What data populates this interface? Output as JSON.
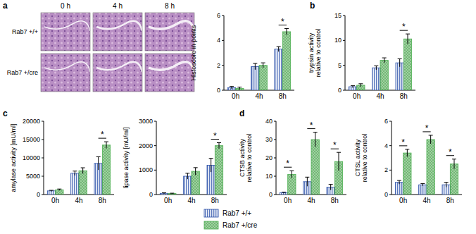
{
  "figure": {
    "panel_label": "a",
    "columns": [
      "0 h",
      "4 h",
      "8 h"
    ],
    "rows": [
      "Rab7 +/+",
      "Rab7 +/cre"
    ]
  },
  "chart_data": [
    {
      "type": "bar",
      "y_label": [
        "Histoscore in points"
      ],
      "categories": [
        "0h",
        "4h",
        "8h"
      ],
      "ylim": [
        0,
        6
      ],
      "yticks": [
        0,
        2,
        4,
        6
      ],
      "series": [
        {
          "name": "Rab7 +/+",
          "color": "#2a4fa8",
          "values": [
            0.2,
            1.9,
            3.3
          ],
          "errors": [
            0.1,
            0.25,
            0.2
          ]
        },
        {
          "name": "Rab7 +/cre",
          "color": "#4caf50",
          "values": [
            0.15,
            2.0,
            4.7
          ],
          "errors": [
            0.1,
            0.2,
            0.25
          ]
        }
      ],
      "annotations": [
        {
          "category": "8h",
          "text": "*"
        }
      ]
    },
    {
      "type": "bar",
      "panel_label": "b",
      "y_label": [
        "trypsin activity",
        "relative to control"
      ],
      "categories": [
        "0h",
        "4h",
        "8h"
      ],
      "ylim": [
        0,
        15
      ],
      "yticks": [
        0,
        5,
        10,
        15
      ],
      "series": [
        {
          "name": "Rab7 +/+",
          "color": "#2a4fa8",
          "values": [
            0.7,
            4.5,
            5.5
          ],
          "errors": [
            0.2,
            0.4,
            0.8
          ]
        },
        {
          "name": "Rab7 +/cre",
          "color": "#4caf50",
          "values": [
            1.0,
            6.0,
            10.3
          ],
          "errors": [
            0.3,
            0.5,
            1.0
          ]
        }
      ],
      "annotations": [
        {
          "category": "8h",
          "text": "*"
        }
      ]
    },
    {
      "type": "bar",
      "panel_label": "c",
      "y_label": [
        "amylase activity [mU/ml]"
      ],
      "categories": [
        "0h",
        "4h",
        "8h"
      ],
      "ylim": [
        0,
        20000
      ],
      "yticks": [
        0,
        5000,
        10000,
        15000,
        20000
      ],
      "series": [
        {
          "name": "Rab7 +/+",
          "color": "#2a4fa8",
          "values": [
            1000,
            5800,
            8500
          ],
          "errors": [
            150,
            600,
            1800
          ]
        },
        {
          "name": "Rab7 +/cre",
          "color": "#4caf50",
          "values": [
            1300,
            6500,
            13500
          ],
          "errors": [
            200,
            800,
            900
          ]
        }
      ],
      "annotations": [
        {
          "category": "8h",
          "text": "*"
        }
      ]
    },
    {
      "type": "bar",
      "y_label": [
        "lipase activity [mU/ml]"
      ],
      "categories": [
        "0h",
        "4h",
        "8h"
      ],
      "ylim": [
        0,
        3000
      ],
      "yticks": [
        0,
        1000,
        2000,
        3000
      ],
      "series": [
        {
          "name": "Rab7 +/+",
          "color": "#2a4fa8",
          "values": [
            50,
            750,
            1200
          ],
          "errors": [
            20,
            120,
            280
          ]
        },
        {
          "name": "Rab7 +/cre",
          "color": "#4caf50",
          "values": [
            40,
            950,
            2000
          ],
          "errors": [
            15,
            150,
            120
          ]
        }
      ],
      "annotations": [
        {
          "category": "8h",
          "text": "*"
        }
      ]
    },
    {
      "type": "bar",
      "panel_label": "d",
      "y_label": [
        "CTSB activity",
        "relative to control"
      ],
      "categories": [
        "0h",
        "4h",
        "8h"
      ],
      "ylim": [
        0,
        40
      ],
      "yticks": [
        0,
        10,
        20,
        30,
        40
      ],
      "series": [
        {
          "name": "Rab7 +/+",
          "color": "#2a4fa8",
          "values": [
            1,
            7,
            4
          ],
          "errors": [
            0.3,
            2.5,
            1.5
          ]
        },
        {
          "name": "Rab7 +/cre",
          "color": "#4caf50",
          "values": [
            11,
            30,
            18
          ],
          "errors": [
            2,
            4,
            5
          ]
        }
      ],
      "annotations": [
        {
          "category": "0h",
          "text": "*"
        },
        {
          "category": "4h",
          "text": "*"
        },
        {
          "category": "8h",
          "text": "*"
        }
      ]
    },
    {
      "type": "bar",
      "y_label": [
        "CTSL activity",
        "relative to control"
      ],
      "categories": [
        "0h",
        "4h",
        "8h"
      ],
      "ylim": [
        0,
        6
      ],
      "yticks": [
        0,
        2,
        4,
        6
      ],
      "series": [
        {
          "name": "Rab7 +/+",
          "color": "#2a4fa8",
          "values": [
            1.0,
            0.8,
            0.8
          ],
          "errors": [
            0.15,
            0.1,
            0.2
          ]
        },
        {
          "name": "Rab7 +/cre",
          "color": "#4caf50",
          "values": [
            3.4,
            4.5,
            2.5
          ],
          "errors": [
            0.3,
            0.35,
            0.4
          ]
        }
      ],
      "annotations": [
        {
          "category": "0h",
          "text": "*"
        },
        {
          "category": "4h",
          "text": "*"
        },
        {
          "category": "8h",
          "text": "*"
        }
      ]
    }
  ]
}
